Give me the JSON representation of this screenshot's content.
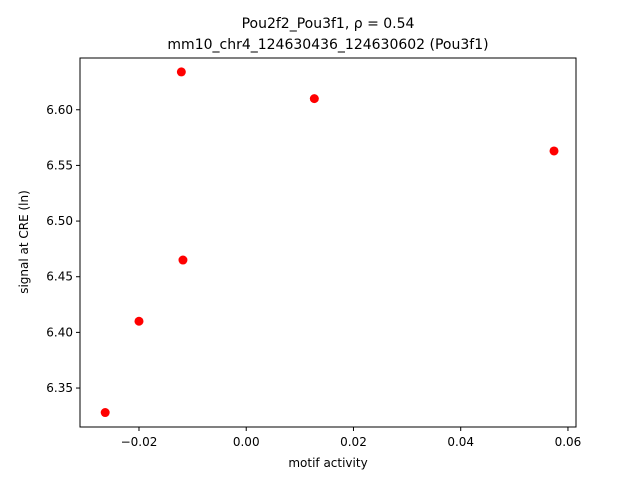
{
  "chart_data": {
    "type": "scatter",
    "title_line1": "Pou2f2_Pou3f1, ρ = 0.54",
    "title_line2": "mm10_chr4_124630436_124630602 (Pou3f1)",
    "xlabel": "motif activity",
    "ylabel": "signal at CRE (ln)",
    "xlim": [
      -0.031,
      0.0615
    ],
    "ylim": [
      6.315,
      6.6465
    ],
    "x_ticks": [
      -0.02,
      0.0,
      0.02,
      0.04,
      0.06
    ],
    "x_tick_labels": [
      "−0.02",
      "0.00",
      "0.02",
      "0.04",
      "0.06"
    ],
    "y_ticks": [
      6.35,
      6.4,
      6.45,
      6.5,
      6.55,
      6.6
    ],
    "y_tick_labels": [
      "6.35",
      "6.40",
      "6.45",
      "6.50",
      "6.55",
      "6.60"
    ],
    "grid": false,
    "marker_color": "#ff0000",
    "points": [
      {
        "x": -0.0263,
        "y": 6.328
      },
      {
        "x": -0.02,
        "y": 6.41
      },
      {
        "x": -0.0118,
        "y": 6.465
      },
      {
        "x": -0.0121,
        "y": 6.634
      },
      {
        "x": 0.0127,
        "y": 6.61
      },
      {
        "x": 0.0574,
        "y": 6.563
      }
    ]
  }
}
